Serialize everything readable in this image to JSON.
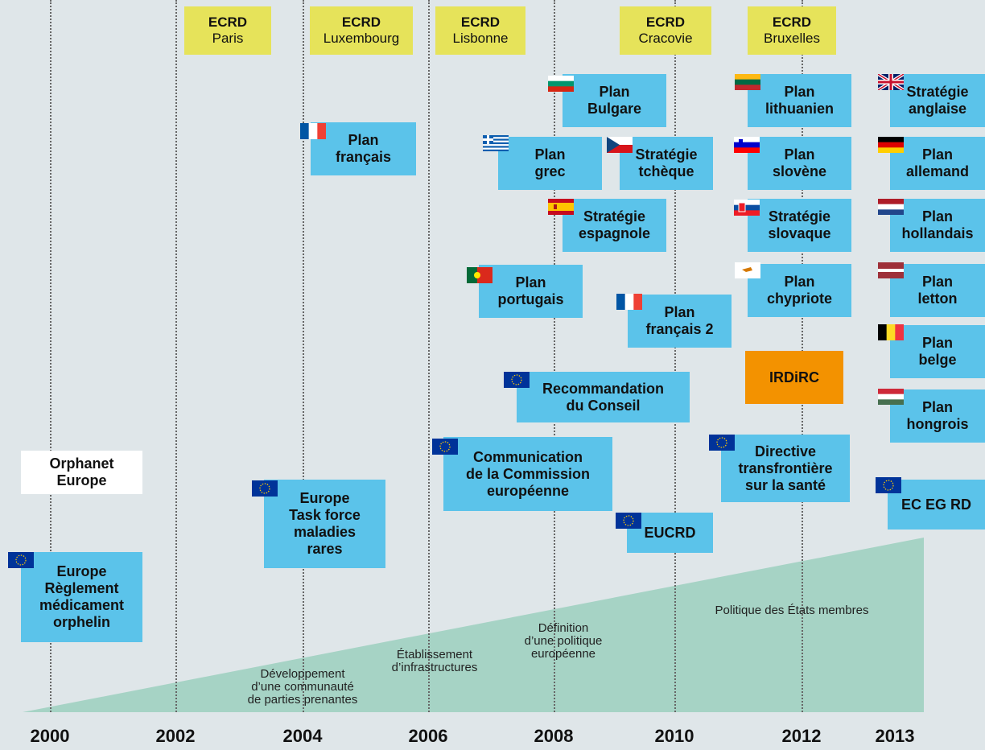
{
  "years": [
    "2000",
    "2002",
    "2004",
    "2006",
    "2008",
    "2010",
    "2012",
    "2013"
  ],
  "ecrd": [
    {
      "title": "ECRD",
      "city": "Paris"
    },
    {
      "title": "ECRD",
      "city": "Luxembourg"
    },
    {
      "title": "ECRD",
      "city": "Lisbonne"
    },
    {
      "title": "ECRD",
      "city": "Cracovie"
    },
    {
      "title": "ECRD",
      "city": "Bruxelles"
    }
  ],
  "boxes": [
    {
      "label": "Orphanet\nEurope"
    },
    {
      "label": "Europe\nRèglement\nmédicament\norphelin"
    },
    {
      "label": "Europe\nTask force\nmaladies\nrares"
    },
    {
      "label": "Plan\nfrançais"
    },
    {
      "label": "Plan\nportugais"
    },
    {
      "label": "Communication\nde la Commission\neuropéenne"
    },
    {
      "label": "Plan\ngrec"
    },
    {
      "label": "Plan\nBulgare"
    },
    {
      "label": "Stratégie\nespagnole"
    },
    {
      "label": "Recommandation\ndu Conseil"
    },
    {
      "label": "Stratégie\ntchèque"
    },
    {
      "label": "Plan\nfrançais 2"
    },
    {
      "label": "EUCRD"
    },
    {
      "label": "Plan\nlithuanien"
    },
    {
      "label": "Plan\nslovène"
    },
    {
      "label": "Stratégie\nslovaque"
    },
    {
      "label": "Plan\nchypriote"
    },
    {
      "label": "IRDiRC"
    },
    {
      "label": "Directive\ntransfrontière\nsur la santé"
    },
    {
      "label": "Stratégie\nanglaise"
    },
    {
      "label": "Plan\nallemand"
    },
    {
      "label": "Plan\nhollandais"
    },
    {
      "label": "Plan\nletton"
    },
    {
      "label": "Plan\nbelge"
    },
    {
      "label": "Plan\nhongrois"
    },
    {
      "label": "EC EG RD"
    }
  ],
  "phases": [
    {
      "label": "Développement\nd’une communauté\nde parties prenantes"
    },
    {
      "label": "Établissement\nd’infrastructures"
    },
    {
      "label": "Définition\nd’une politique\neuropéenne"
    },
    {
      "label": "Politique des États membres"
    }
  ]
}
